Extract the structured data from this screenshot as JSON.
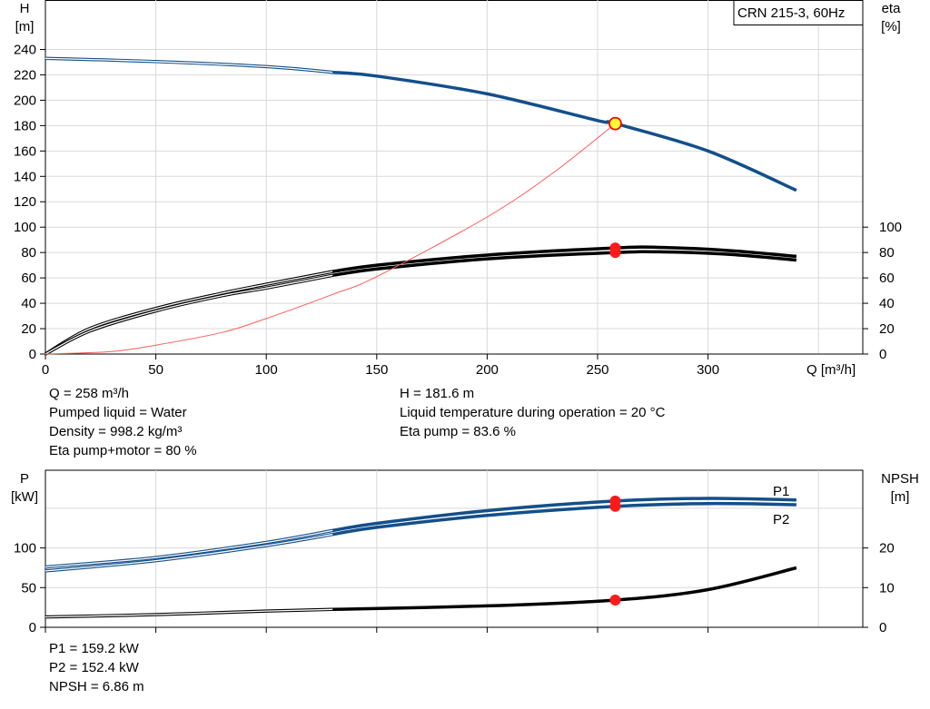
{
  "chart_data": [
    {
      "type": "line",
      "title": "CRN 215-3, 60Hz",
      "x_axis": {
        "label": "Q [m³/h]",
        "range": [
          0,
          350
        ],
        "ticks": [
          0,
          50,
          100,
          150,
          200,
          250,
          300
        ]
      },
      "y_left": {
        "label_line1": "H",
        "label_line2": "[m]",
        "range": [
          0,
          250
        ],
        "ticks": [
          0,
          20,
          40,
          60,
          80,
          100,
          120,
          140,
          160,
          180,
          200,
          220,
          240
        ]
      },
      "y_right": {
        "label_line1": "eta",
        "label_line2": "[%]",
        "range": [
          0,
          250
        ],
        "ticks": [
          0,
          20,
          40,
          60,
          80,
          100
        ]
      },
      "grid": true,
      "series": [
        {
          "name": "H",
          "color": "#134f8a",
          "thin_points": [
            [
              0,
              233
            ],
            [
              50,
              230.5
            ],
            [
              100,
              226.5
            ],
            [
              130,
              222
            ]
          ],
          "bold_points": [
            [
              130,
              222
            ],
            [
              150,
              219
            ],
            [
              200,
              205
            ],
            [
              250,
              184
            ],
            [
              258,
              181.6
            ],
            [
              300,
              160
            ],
            [
              340,
              129
            ]
          ]
        },
        {
          "name": "Eta pump",
          "color": "#000000",
          "thin_points": [
            [
              0,
              0
            ],
            [
              20,
              20
            ],
            [
              50,
              36
            ],
            [
              80,
              48
            ],
            [
              100,
              55
            ],
            [
              130,
              65
            ]
          ],
          "bold_points": [
            [
              130,
              65
            ],
            [
              150,
              70
            ],
            [
              200,
              78
            ],
            [
              258,
              83.6
            ],
            [
              280,
              84
            ],
            [
              310,
              81.5
            ],
            [
              340,
              77
            ]
          ]
        },
        {
          "name": "Eta pump+motor",
          "color": "#000000",
          "thin_points": [
            [
              0,
              0
            ],
            [
              20,
              18
            ],
            [
              50,
              34
            ],
            [
              80,
              46
            ],
            [
              100,
              52
            ],
            [
              130,
              62
            ]
          ],
          "bold_points": [
            [
              130,
              62
            ],
            [
              150,
              67
            ],
            [
              200,
              75
            ],
            [
              258,
              80
            ],
            [
              280,
              80.5
            ],
            [
              310,
              78.5
            ],
            [
              340,
              74
            ]
          ]
        },
        {
          "name": "System curve",
          "color": "#ff5a5a",
          "points": [
            [
              0,
              0
            ],
            [
              30,
              2
            ],
            [
              50,
              7
            ],
            [
              80,
              17
            ],
            [
              100,
              28
            ],
            [
              130,
              47
            ],
            [
              150,
              61
            ],
            [
              200,
              108
            ],
            [
              230,
              143
            ],
            [
              258,
              181.6
            ]
          ]
        }
      ],
      "markers": [
        {
          "x": 258,
          "y": 181.6,
          "kind": "duty-point"
        },
        {
          "x": 258,
          "y": 83.6,
          "kind": "eta-pump"
        },
        {
          "x": 258,
          "y": 80,
          "kind": "eta-pump-motor"
        }
      ]
    },
    {
      "type": "line",
      "y_left": {
        "label_line1": "P",
        "label_line2": "[kW]",
        "range": [
          0,
          170
        ],
        "ticks": [
          0,
          50,
          100
        ]
      },
      "y_right": {
        "label_line1": "NPSH",
        "label_line2": "[m]",
        "range": [
          0,
          34
        ],
        "ticks": [
          0,
          10,
          20
        ]
      },
      "x_axis": {
        "range": [
          0,
          350
        ]
      },
      "grid": true,
      "series": [
        {
          "name": "P1",
          "color": "#134f8a",
          "thin_points": [
            [
              0,
              76
            ],
            [
              50,
              88
            ],
            [
              100,
              107
            ],
            [
              130,
              122
            ]
          ],
          "bold_points": [
            [
              130,
              122
            ],
            [
              150,
              131
            ],
            [
              200,
              147
            ],
            [
              258,
              159.2
            ],
            [
              300,
              162.5
            ],
            [
              340,
              160.5
            ]
          ]
        },
        {
          "name": "P2",
          "color": "#134f8a",
          "thin_points": [
            [
              0,
              71
            ],
            [
              50,
              84
            ],
            [
              100,
              103
            ],
            [
              130,
              117
            ]
          ],
          "bold_points": [
            [
              130,
              117
            ],
            [
              150,
              126
            ],
            [
              200,
              141
            ],
            [
              258,
              152.4
            ],
            [
              300,
              156
            ],
            [
              340,
              154.5
            ]
          ]
        },
        {
          "name": "NPSH",
          "color": "#000000",
          "axis": "right",
          "thin_points": [
            [
              0,
              2.6
            ],
            [
              50,
              3.2
            ],
            [
              100,
              4.1
            ],
            [
              130,
              4.5
            ]
          ],
          "bold_points": [
            [
              130,
              4.5
            ],
            [
              200,
              5.4
            ],
            [
              258,
              6.86
            ],
            [
              300,
              9.5
            ],
            [
              340,
              15
            ]
          ]
        }
      ],
      "markers": [
        {
          "x": 258,
          "y": 159.2,
          "kind": "P1"
        },
        {
          "x": 258,
          "y": 152.4,
          "kind": "P2"
        },
        {
          "x": 258,
          "y": 6.86,
          "kind": "NPSH",
          "axis": "right"
        }
      ],
      "series_labels": {
        "p1": "P1",
        "p2": "P2"
      }
    }
  ],
  "info_top_left": [
    "Q = 258 m³/h",
    "Pumped liquid = Water",
    "Density = 998.2 kg/m³",
    "Eta pump+motor = 80 %"
  ],
  "info_top_right": [
    "H = 181.6 m",
    "Liquid temperature during operation = 20 °C",
    "Eta pump = 83.6 %"
  ],
  "info_bottom": [
    "P1 = 159.2 kW",
    "P2 = 152.4 kW",
    "NPSH = 6.86 m"
  ]
}
